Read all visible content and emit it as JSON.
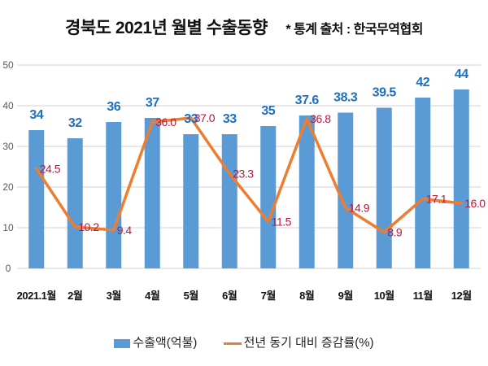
{
  "chart_data": {
    "type": "bar",
    "title": "경북도 2021년 월별 수출동향",
    "subtitle": "* 통계 출처 : 한국무역협회",
    "categories": [
      "2021.1월",
      "2월",
      "3월",
      "4월",
      "5월",
      "6월",
      "7월",
      "8월",
      "9월",
      "10월",
      "11월",
      "12월"
    ],
    "series": [
      {
        "name": "수출액(억불)",
        "type": "bar",
        "color": "#5b9bd5",
        "label_color": "#1f6fc0",
        "values": [
          34,
          32,
          36,
          37,
          33,
          33,
          35,
          37.6,
          38.3,
          39.5,
          42,
          44
        ],
        "labels": [
          "34",
          "32",
          "36",
          "37",
          "33",
          "33",
          "35",
          "37.6",
          "38.3",
          "39.5",
          "42",
          "44"
        ]
      },
      {
        "name": "전년 동기 대비 증감률(%)",
        "type": "line",
        "color": "#ed7d31",
        "label_color": "#c0143c",
        "values": [
          24.5,
          10.2,
          9.4,
          36.0,
          37.0,
          23.3,
          11.5,
          36.8,
          14.9,
          8.9,
          17.1,
          16.0
        ],
        "labels": [
          "24.5",
          "10.2",
          "9.4",
          "36.0",
          "37.0",
          "23.3",
          "11.5",
          "36.8",
          "14.9",
          "8.9",
          "17.1",
          "16.0"
        ]
      }
    ],
    "yticks": [
      "0",
      "10",
      "20",
      "30",
      "40",
      "50"
    ],
    "ylim": [
      0,
      50
    ],
    "grid": true,
    "legend_position": "bottom",
    "xlabel": "",
    "ylabel": ""
  }
}
